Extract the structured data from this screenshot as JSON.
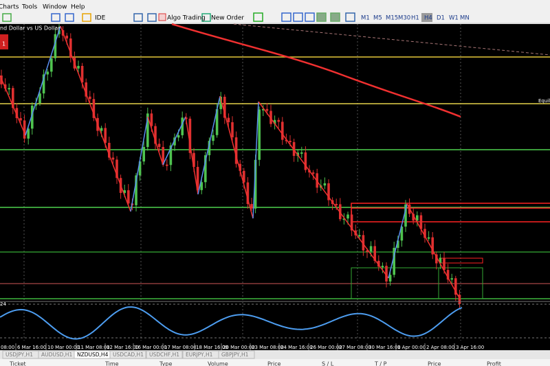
{
  "menu": {
    "items": [
      "Charts",
      "Tools",
      "Window",
      "Help"
    ]
  },
  "toolbar": {
    "ide": "IDE",
    "algo_trading": "Algo Trading",
    "new_order": "New Order",
    "timeframes": [
      "M1",
      "M5",
      "M15",
      "M30",
      "H1",
      "H4",
      "D1",
      "W1",
      "MN"
    ]
  },
  "chart": {
    "symbol_label": "nd Dollar vs US Dollar",
    "panel_text": "1",
    "right_label": "Equili",
    "oscillator_label": "24",
    "time_axis": [
      "08:00",
      "6 Mar 16:00",
      "10 Mar 00:00",
      "11 Mar 08:00",
      "12 Mar 16:00",
      "16 Mar 00:00",
      "17 Mar 08:00",
      "18 Mar 16:00",
      "20 Mar 00:00",
      "23 Mar 08:00",
      "24 Mar 16:00",
      "26 Mar 00:00",
      "27 Mar 08:00",
      "30 Mar 16:00",
      "1 Apr 00:00",
      "2 Apr 08:00",
      "3 Apr 16:00"
    ]
  },
  "tabs": [
    "USDJPY,H1",
    "AUDUSD,H1",
    "NZDUSD,H4",
    "USDCAD,H1",
    "USDCHF,H1",
    "EURJPY,H1",
    "GBPJPY,H1"
  ],
  "trade_table": {
    "columns": [
      "Ticket",
      "Time",
      "Type",
      "Volume",
      "Price",
      "S / L",
      "T / P",
      "Price",
      "Profit"
    ]
  }
}
